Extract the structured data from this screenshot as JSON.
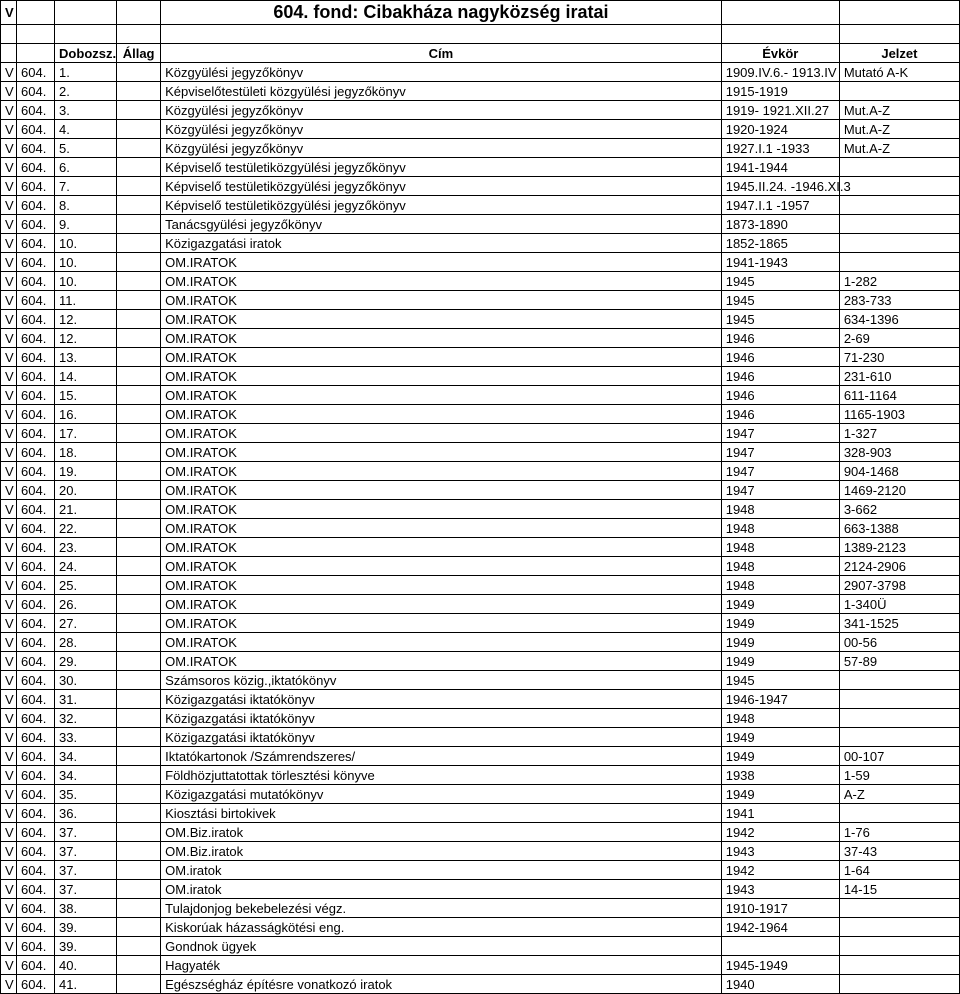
{
  "title_row_v": "V",
  "title": "604. fond: Cibakháza nagyközség iratai",
  "headers": {
    "v": "",
    "fond": "",
    "doboz": "Dobozsz.",
    "allag": "Állag",
    "cim": "Cím",
    "ev": "Évkör",
    "jelzet": "Jelzet"
  },
  "rows": [
    {
      "v": "V",
      "fond": "604.",
      "doboz": "1.",
      "allag": "",
      "cim": "Közgyülési jegyzőkönyv",
      "ev": "1909.IV.6.- 1913.IV",
      "jelzet": "Mutató A-K"
    },
    {
      "v": "V",
      "fond": "604.",
      "doboz": "2.",
      "allag": "",
      "cim": "Képviselőtestületi közgyülési jegyzőkönyv",
      "ev": "1915-1919",
      "jelzet": ""
    },
    {
      "v": "V",
      "fond": "604.",
      "doboz": "3.",
      "allag": "",
      "cim": "Közgyülési jegyzőkönyv",
      "ev": "1919- 1921.XII.27",
      "jelzet": "Mut.A-Z"
    },
    {
      "v": "V",
      "fond": "604.",
      "doboz": "4.",
      "allag": "",
      "cim": "Közgyülési jegyzőkönyv",
      "ev": "1920-1924",
      "jelzet": "Mut.A-Z"
    },
    {
      "v": "V",
      "fond": "604.",
      "doboz": "5.",
      "allag": "",
      "cim": "Közgyülési jegyzőkönyv",
      "ev": "1927.I.1 -1933",
      "jelzet": "Mut.A-Z"
    },
    {
      "v": "V",
      "fond": "604.",
      "doboz": "6.",
      "allag": "",
      "cim": "Képviselő testületiközgyülési jegyzőkönyv",
      "ev": "1941-1944",
      "jelzet": ""
    },
    {
      "v": "V",
      "fond": "604.",
      "doboz": "7.",
      "allag": "",
      "cim": "Képviselő testületiközgyülési jegyzőkönyv",
      "ev": "1945.II.24. -1946.XI.3",
      "jelzet": ""
    },
    {
      "v": "V",
      "fond": "604.",
      "doboz": "8.",
      "allag": "",
      "cim": "Képviselő testületiközgyülési jegyzőkönyv",
      "ev": "1947.I.1 -1957",
      "jelzet": ""
    },
    {
      "v": "V",
      "fond": "604.",
      "doboz": "9.",
      "allag": "",
      "cim": "Tanácsgyülési jegyzőkönyv",
      "ev": "1873-1890",
      "jelzet": ""
    },
    {
      "v": "V",
      "fond": "604.",
      "doboz": "10.",
      "allag": "",
      "cim": "Közigazgatási iratok",
      "ev": "1852-1865",
      "jelzet": ""
    },
    {
      "v": "V",
      "fond": "604.",
      "doboz": "10.",
      "allag": "",
      "cim": "OM.IRATOK",
      "ev": "1941-1943",
      "jelzet": ""
    },
    {
      "v": "V",
      "fond": "604.",
      "doboz": "10.",
      "allag": "",
      "cim": "OM.IRATOK",
      "ev": "1945",
      "jelzet": "1-282"
    },
    {
      "v": "V",
      "fond": "604.",
      "doboz": "11.",
      "allag": "",
      "cim": "OM.IRATOK",
      "ev": "1945",
      "jelzet": "283-733"
    },
    {
      "v": "V",
      "fond": "604.",
      "doboz": "12.",
      "allag": "",
      "cim": "OM.IRATOK",
      "ev": "1945",
      "jelzet": "634-1396"
    },
    {
      "v": "V",
      "fond": "604.",
      "doboz": "12.",
      "allag": "",
      "cim": "OM.IRATOK",
      "ev": "1946",
      "jelzet": "2-69"
    },
    {
      "v": "V",
      "fond": "604.",
      "doboz": "13.",
      "allag": "",
      "cim": "OM.IRATOK",
      "ev": "1946",
      "jelzet": "71-230"
    },
    {
      "v": "V",
      "fond": "604.",
      "doboz": "14.",
      "allag": "",
      "cim": "OM.IRATOK",
      "ev": "1946",
      "jelzet": "231-610"
    },
    {
      "v": "V",
      "fond": "604.",
      "doboz": "15.",
      "allag": "",
      "cim": "OM.IRATOK",
      "ev": "1946",
      "jelzet": "611-1164"
    },
    {
      "v": "V",
      "fond": "604.",
      "doboz": "16.",
      "allag": "",
      "cim": "OM.IRATOK",
      "ev": "1946",
      "jelzet": "1165-1903"
    },
    {
      "v": "V",
      "fond": "604.",
      "doboz": "17.",
      "allag": "",
      "cim": "OM.IRATOK",
      "ev": "1947",
      "jelzet": "1-327"
    },
    {
      "v": "V",
      "fond": "604.",
      "doboz": "18.",
      "allag": "",
      "cim": "OM.IRATOK",
      "ev": "1947",
      "jelzet": "328-903"
    },
    {
      "v": "V",
      "fond": "604.",
      "doboz": "19.",
      "allag": "",
      "cim": "OM.IRATOK",
      "ev": "1947",
      "jelzet": "904-1468"
    },
    {
      "v": "V",
      "fond": "604.",
      "doboz": "20.",
      "allag": "",
      "cim": "OM.IRATOK",
      "ev": "1947",
      "jelzet": "1469-2120"
    },
    {
      "v": "V",
      "fond": "604.",
      "doboz": "21.",
      "allag": "",
      "cim": "OM.IRATOK",
      "ev": "1948",
      "jelzet": "3-662"
    },
    {
      "v": "V",
      "fond": "604.",
      "doboz": "22.",
      "allag": "",
      "cim": "OM.IRATOK",
      "ev": "1948",
      "jelzet": "663-1388"
    },
    {
      "v": "V",
      "fond": "604.",
      "doboz": "23.",
      "allag": "",
      "cim": "OM.IRATOK",
      "ev": "1948",
      "jelzet": "1389-2123"
    },
    {
      "v": "V",
      "fond": "604.",
      "doboz": "24.",
      "allag": "",
      "cim": "OM.IRATOK",
      "ev": "1948",
      "jelzet": "2124-2906"
    },
    {
      "v": "V",
      "fond": "604.",
      "doboz": "25.",
      "allag": "",
      "cim": "OM.IRATOK",
      "ev": "1948",
      "jelzet": "2907-3798"
    },
    {
      "v": "V",
      "fond": "604.",
      "doboz": "26.",
      "allag": "",
      "cim": "OM.IRATOK",
      "ev": "1949",
      "jelzet": "1-340Ü"
    },
    {
      "v": "V",
      "fond": "604.",
      "doboz": "27.",
      "allag": "",
      "cim": "OM.IRATOK",
      "ev": "1949",
      "jelzet": "341-1525"
    },
    {
      "v": "V",
      "fond": "604.",
      "doboz": "28.",
      "allag": "",
      "cim": "OM.IRATOK",
      "ev": "1949",
      "jelzet": "00-56"
    },
    {
      "v": "V",
      "fond": "604.",
      "doboz": "29.",
      "allag": "",
      "cim": "OM.IRATOK",
      "ev": "1949",
      "jelzet": "57-89"
    },
    {
      "v": "V",
      "fond": "604.",
      "doboz": "30.",
      "allag": "",
      "cim": "Számsoros közig.,iktatókönyv",
      "ev": "1945",
      "jelzet": ""
    },
    {
      "v": "V",
      "fond": "604.",
      "doboz": "31.",
      "allag": "",
      "cim": "Közigazgatási iktatókönyv",
      "ev": "1946-1947",
      "jelzet": ""
    },
    {
      "v": "V",
      "fond": "604.",
      "doboz": "32.",
      "allag": "",
      "cim": "Közigazgatási iktatókönyv",
      "ev": "1948",
      "jelzet": ""
    },
    {
      "v": "V",
      "fond": "604.",
      "doboz": "33.",
      "allag": "",
      "cim": "Közigazgatási iktatókönyv",
      "ev": "1949",
      "jelzet": ""
    },
    {
      "v": "V",
      "fond": "604.",
      "doboz": "34.",
      "allag": "",
      "cim": "Iktatókartonok /Számrendszeres/",
      "ev": "1949",
      "jelzet": "00-107"
    },
    {
      "v": "V",
      "fond": "604.",
      "doboz": "34.",
      "allag": "",
      "cim": "Földhözjuttatottak törlesztési könyve",
      "ev": "1938",
      "jelzet": "1-59"
    },
    {
      "v": "V",
      "fond": "604.",
      "doboz": "35.",
      "allag": "",
      "cim": "Közigazgatási mutatókönyv",
      "ev": "1949",
      "jelzet": "A-Z"
    },
    {
      "v": "V",
      "fond": "604.",
      "doboz": "36.",
      "allag": "",
      "cim": "Kiosztási birtokivek",
      "ev": "1941",
      "jelzet": ""
    },
    {
      "v": "V",
      "fond": "604.",
      "doboz": "37.",
      "allag": "",
      "cim": "OM.Biz.iratok",
      "ev": "1942",
      "jelzet": "1-76"
    },
    {
      "v": "V",
      "fond": "604.",
      "doboz": "37.",
      "allag": "",
      "cim": "OM.Biz.iratok",
      "ev": "1943",
      "jelzet": "37-43"
    },
    {
      "v": "V",
      "fond": "604.",
      "doboz": "37.",
      "allag": "",
      "cim": "OM.iratok",
      "ev": "1942",
      "jelzet": "1-64"
    },
    {
      "v": "V",
      "fond": "604.",
      "doboz": "37.",
      "allag": "",
      "cim": "OM.iratok",
      "ev": "1943",
      "jelzet": "14-15"
    },
    {
      "v": "V",
      "fond": "604.",
      "doboz": "38.",
      "allag": "",
      "cim": "Tulajdonjog bekebelezési végz.",
      "ev": "1910-1917",
      "jelzet": ""
    },
    {
      "v": "V",
      "fond": "604.",
      "doboz": "39.",
      "allag": "",
      "cim": "Kiskorúak házasságkötési eng.",
      "ev": "1942-1964",
      "jelzet": ""
    },
    {
      "v": "V",
      "fond": "604.",
      "doboz": "39.",
      "allag": "",
      "cim": "Gondnok ügyek",
      "ev": "",
      "jelzet": ""
    },
    {
      "v": "V",
      "fond": "604.",
      "doboz": "40.",
      "allag": "",
      "cim": "Hagyaték",
      "ev": "1945-1949",
      "jelzet": ""
    },
    {
      "v": "V",
      "fond": "604.",
      "doboz": "41.",
      "allag": "",
      "cim": "Egészségház építésre vonatkozó iratok",
      "ev": "1940",
      "jelzet": ""
    }
  ]
}
